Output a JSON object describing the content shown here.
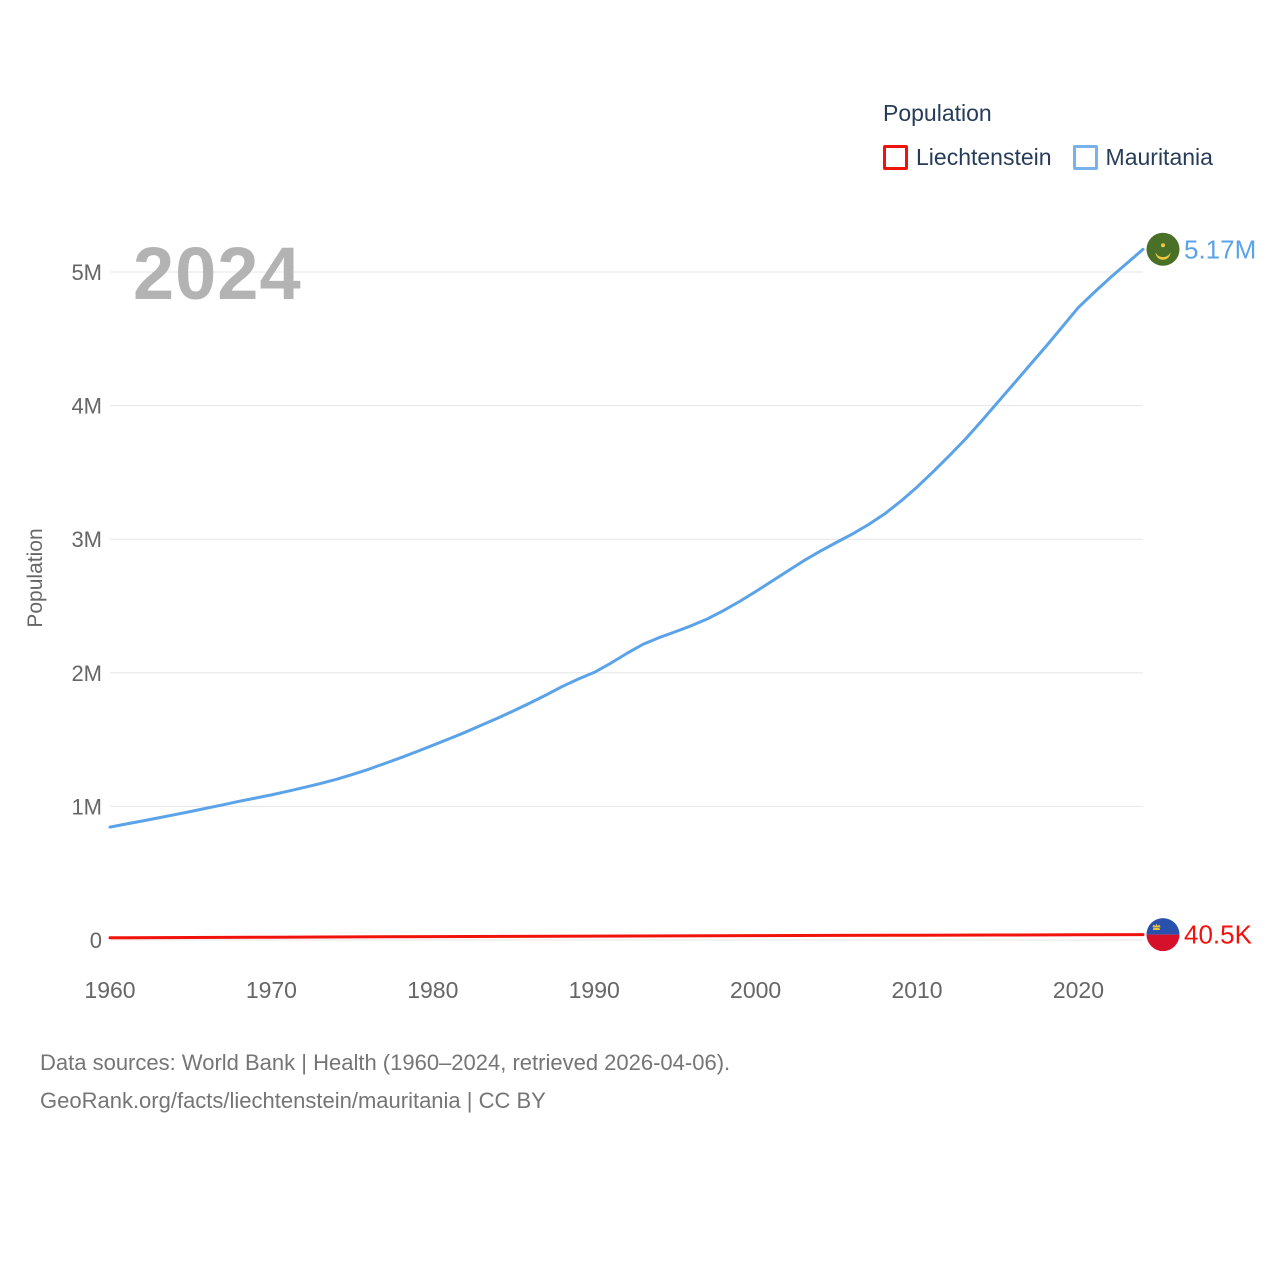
{
  "watermark": "2024",
  "legend": {
    "title": "Population",
    "items": [
      {
        "label": "Liechtenstein",
        "color": "#f2120c"
      },
      {
        "label": "Mauritania",
        "color": "#79b2e8"
      }
    ]
  },
  "footer": {
    "line1": "Data sources: World Bank | Health (1960–2024, retrieved 2026-04-06).",
    "line2": "GeoRank.org/facts/liechtenstein/mauritania | CC BY"
  },
  "chart_data": {
    "type": "line",
    "title": "Population",
    "xlabel": "",
    "ylabel": "Population",
    "xlim": [
      1960,
      2024
    ],
    "ylim": [
      0,
      5170000
    ],
    "grid": true,
    "legend_position": "top-right",
    "x_ticks": [
      1960,
      1970,
      1980,
      1990,
      2000,
      2010,
      2020
    ],
    "y_ticks": [
      {
        "value": 0,
        "label": "0"
      },
      {
        "value": 1000000,
        "label": "1M"
      },
      {
        "value": 2000000,
        "label": "2M"
      },
      {
        "value": 3000000,
        "label": "3M"
      },
      {
        "value": 4000000,
        "label": "4M"
      },
      {
        "value": 5000000,
        "label": "5M"
      }
    ],
    "series": [
      {
        "name": "Liechtenstein",
        "color": "#f2120c",
        "end_label": "40.5K",
        "end_value": 40500,
        "flag_icon": "liechtenstein-flag-icon",
        "points": [
          [
            1960,
            16600
          ],
          [
            1965,
            19000
          ],
          [
            1970,
            21300
          ],
          [
            1975,
            23300
          ],
          [
            1980,
            25500
          ],
          [
            1985,
            27100
          ],
          [
            1990,
            29000
          ],
          [
            1995,
            31000
          ],
          [
            2000,
            33200
          ],
          [
            2005,
            34800
          ],
          [
            2010,
            36000
          ],
          [
            2015,
            37400
          ],
          [
            2020,
            38800
          ],
          [
            2024,
            40500
          ]
        ]
      },
      {
        "name": "Mauritania",
        "color": "#5ba3e8",
        "end_label": "5.17M",
        "end_value": 5170000,
        "flag_icon": "mauritania-flag-icon",
        "points": [
          [
            1960,
            845000
          ],
          [
            1961,
            868000
          ],
          [
            1962,
            891000
          ],
          [
            1963,
            914000
          ],
          [
            1964,
            938000
          ],
          [
            1965,
            962000
          ],
          [
            1966,
            987000
          ],
          [
            1967,
            1012000
          ],
          [
            1968,
            1038000
          ],
          [
            1969,
            1062000
          ],
          [
            1970,
            1086000
          ],
          [
            1971,
            1113000
          ],
          [
            1972,
            1141000
          ],
          [
            1973,
            1170000
          ],
          [
            1974,
            1202000
          ],
          [
            1975,
            1238000
          ],
          [
            1976,
            1277000
          ],
          [
            1977,
            1320000
          ],
          [
            1978,
            1364000
          ],
          [
            1979,
            1410000
          ],
          [
            1980,
            1457000
          ],
          [
            1981,
            1505000
          ],
          [
            1982,
            1555000
          ],
          [
            1983,
            1607000
          ],
          [
            1984,
            1660000
          ],
          [
            1985,
            1715000
          ],
          [
            1986,
            1773000
          ],
          [
            1987,
            1833000
          ],
          [
            1988,
            1896000
          ],
          [
            1989,
            1953000
          ],
          [
            1990,
            2003000
          ],
          [
            1991,
            2070000
          ],
          [
            1992,
            2144000
          ],
          [
            1993,
            2212000
          ],
          [
            1994,
            2263000
          ],
          [
            1995,
            2306000
          ],
          [
            1996,
            2352000
          ],
          [
            1997,
            2403000
          ],
          [
            1998,
            2465000
          ],
          [
            1999,
            2534000
          ],
          [
            2000,
            2608000
          ],
          [
            2001,
            2686000
          ],
          [
            2002,
            2763000
          ],
          [
            2003,
            2840000
          ],
          [
            2004,
            2910000
          ],
          [
            2005,
            2975000
          ],
          [
            2006,
            3040000
          ],
          [
            2007,
            3110000
          ],
          [
            2008,
            3190000
          ],
          [
            2009,
            3285000
          ],
          [
            2010,
            3390000
          ],
          [
            2011,
            3505000
          ],
          [
            2012,
            3625000
          ],
          [
            2013,
            3750000
          ],
          [
            2014,
            3885000
          ],
          [
            2015,
            4025000
          ],
          [
            2016,
            4165000
          ],
          [
            2017,
            4305000
          ],
          [
            2018,
            4445000
          ],
          [
            2019,
            4590000
          ],
          [
            2020,
            4735000
          ],
          [
            2021,
            4850000
          ],
          [
            2022,
            4960000
          ],
          [
            2023,
            5065000
          ],
          [
            2024,
            5170000
          ]
        ]
      }
    ]
  }
}
